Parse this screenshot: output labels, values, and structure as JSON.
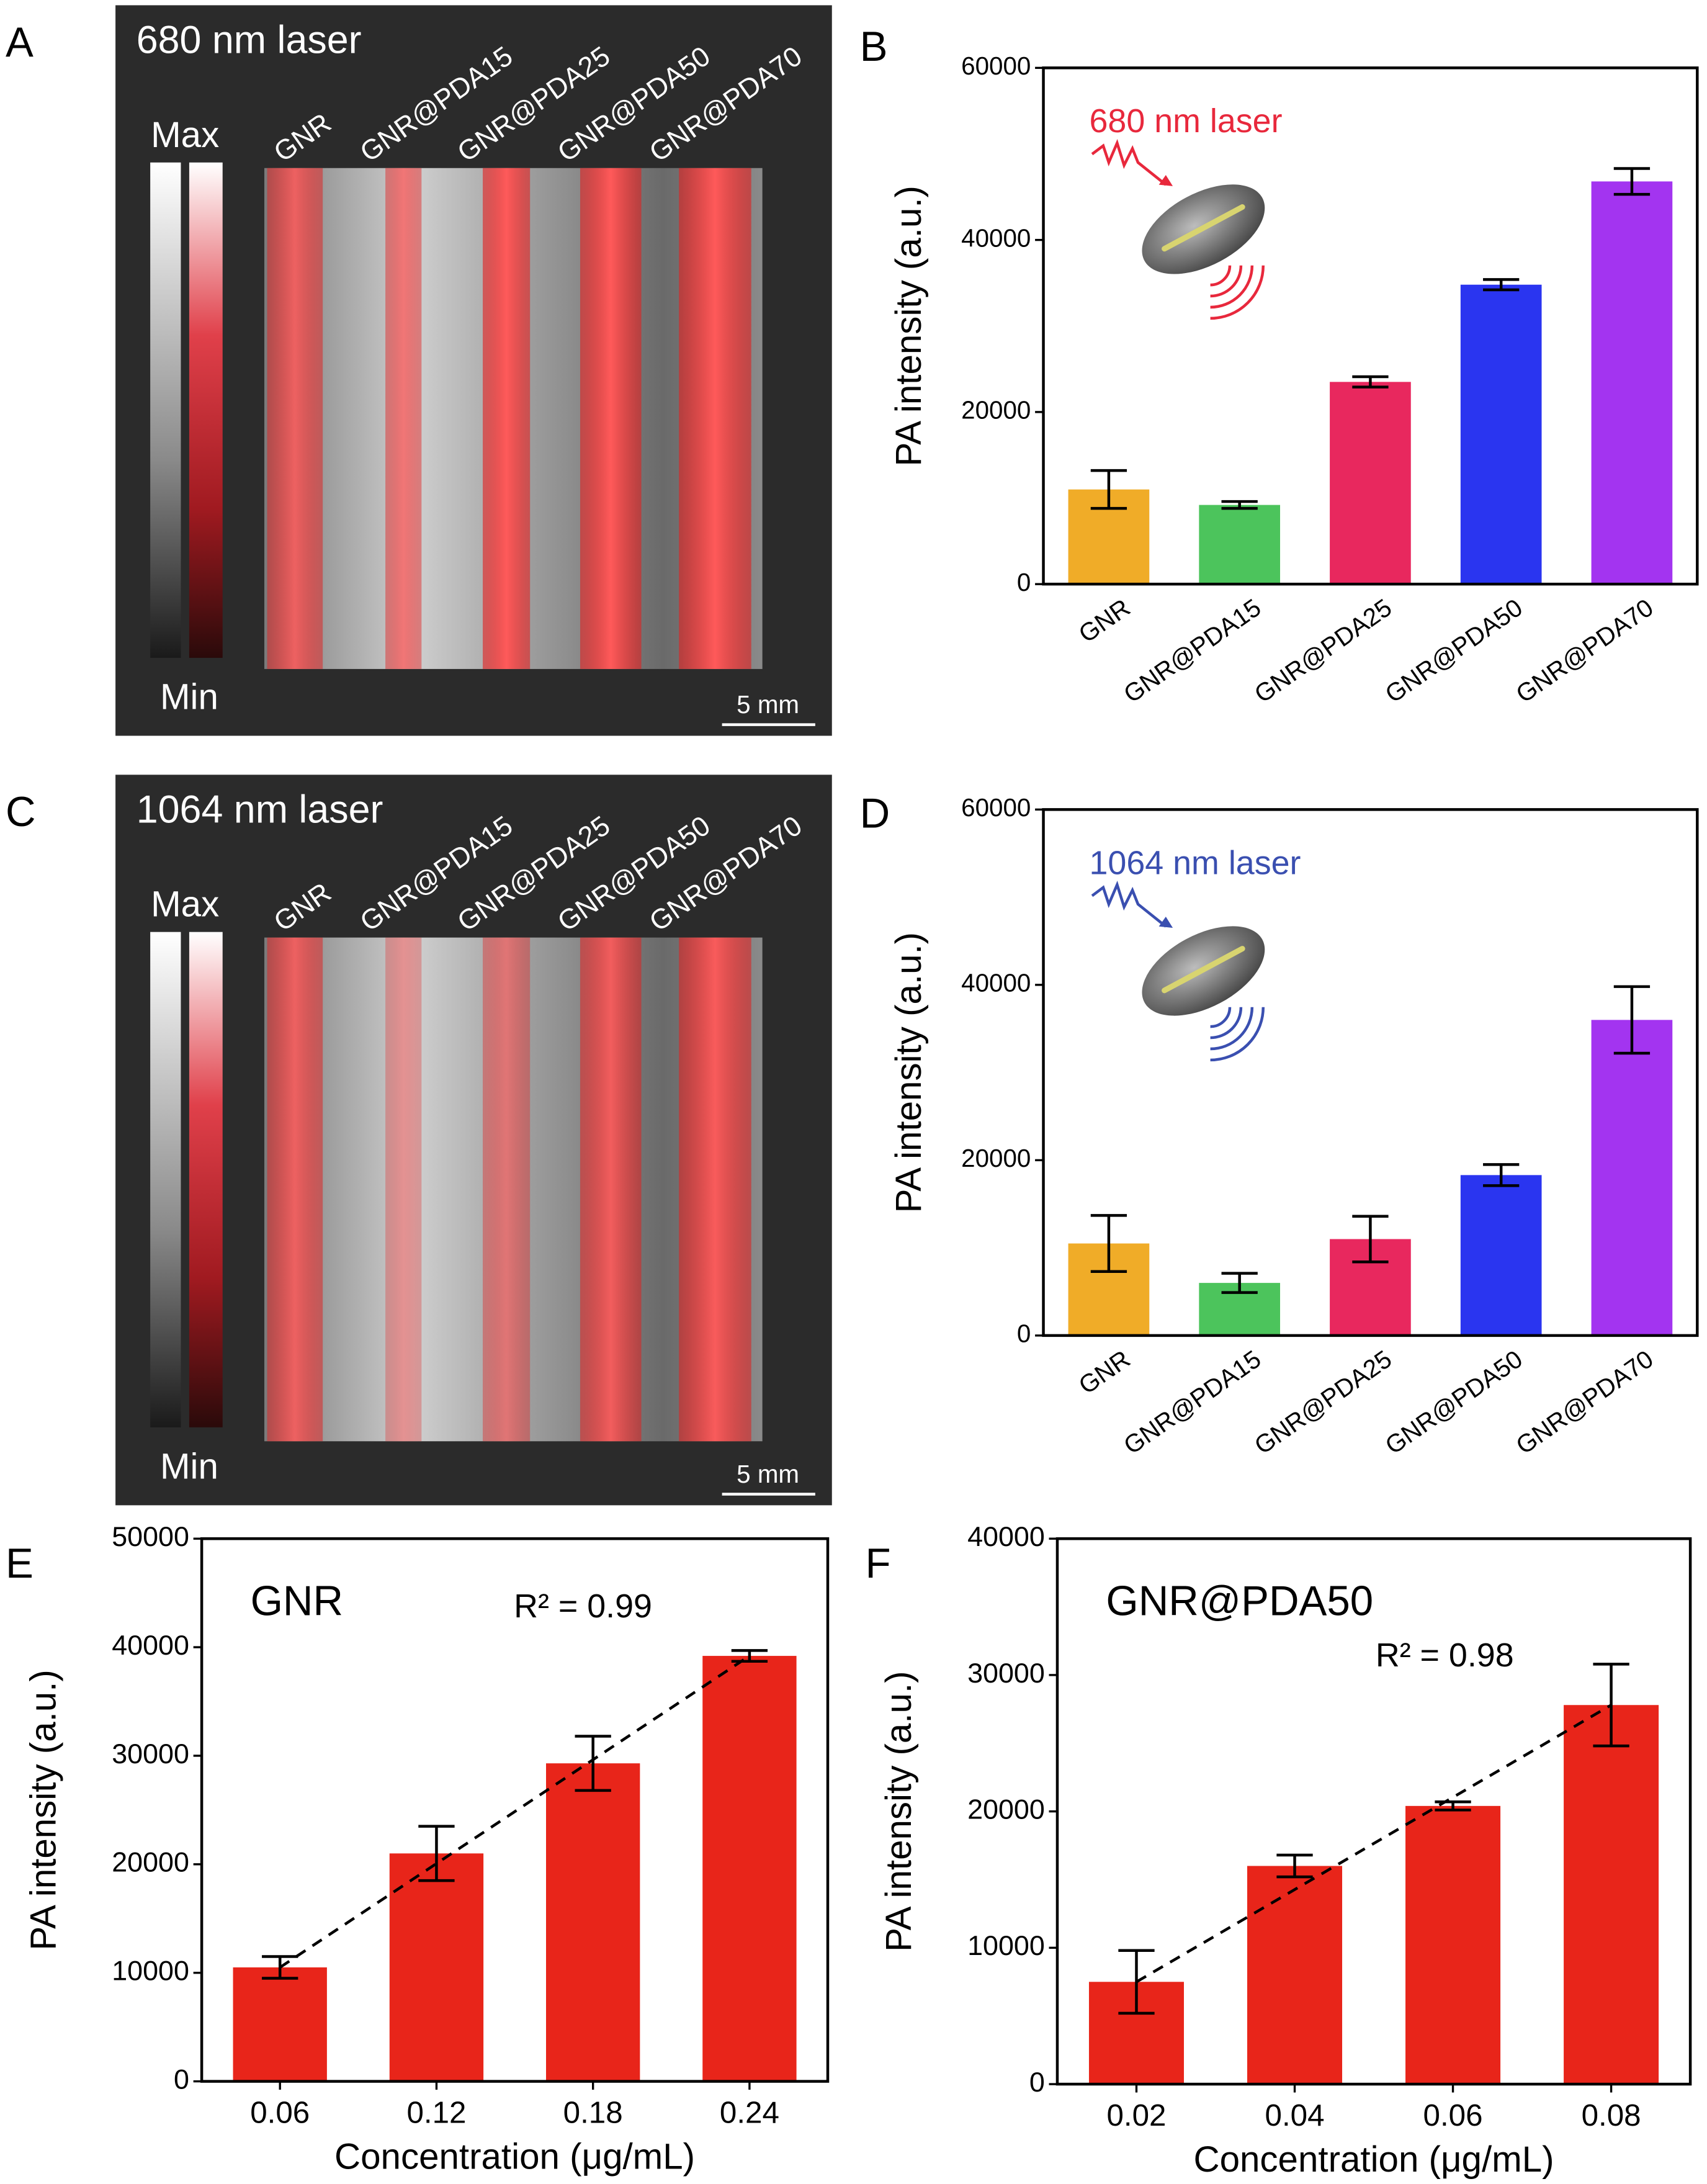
{
  "images": [
    {
      "panel_label": "A",
      "title": "680 nm laser",
      "max_label": "Max",
      "min_label": "Min",
      "scale_bar": "5 mm",
      "lanes": [
        "GNR",
        "GNR@PDA15",
        "GNR@PDA25",
        "GNR@PDA50",
        "GNR@PDA70"
      ]
    },
    {
      "panel_label": "C",
      "title": "1064 nm laser",
      "max_label": "Max",
      "min_label": "Min",
      "scale_bar": "5 mm",
      "lanes": [
        "GNR",
        "GNR@PDA15",
        "GNR@PDA25",
        "GNR@PDA50",
        "GNR@PDA70"
      ]
    }
  ],
  "chart_data": [
    {
      "type": "bar",
      "panel_label": "B",
      "annotation": "680 nm laser",
      "annotation_color": "#e8283c",
      "y_label": "PA intensity (a.u.)",
      "categories": [
        "GNR",
        "GNR@PDA15",
        "GNR@PDA25",
        "GNR@PDA50",
        "GNR@PDA70"
      ],
      "values": [
        11000,
        9200,
        23500,
        34800,
        46800
      ],
      "errors": [
        2200,
        400,
        600,
        600,
        1500
      ],
      "colors": [
        "#f0ac28",
        "#4cc45c",
        "#e8285e",
        "#2a35f0",
        "#a334f0"
      ],
      "ylim": [
        0,
        60000
      ],
      "yticks": [
        0,
        20000,
        40000,
        60000
      ]
    },
    {
      "type": "bar",
      "panel_label": "D",
      "annotation": "1064 nm laser",
      "annotation_color": "#3a4fb0",
      "y_label": "PA intensity (a.u.)",
      "categories": [
        "GNR",
        "GNR@PDA15",
        "GNR@PDA25",
        "GNR@PDA50",
        "GNR@PDA70"
      ],
      "values": [
        10500,
        6000,
        11000,
        18300,
        36000
      ],
      "errors": [
        3200,
        1100,
        2600,
        1200,
        3800
      ],
      "colors": [
        "#f0ac28",
        "#4cc45c",
        "#e8285e",
        "#2a35f0",
        "#a334f0"
      ],
      "ylim": [
        0,
        60000
      ],
      "yticks": [
        0,
        20000,
        40000,
        60000
      ]
    },
    {
      "type": "bar",
      "panel_label": "E",
      "title": "GNR",
      "annotation": "R² = 0.99",
      "fit_line": true,
      "y_label": "PA intensity (a.u.)",
      "x_label": "Concentration (μg/mL)",
      "categories": [
        "0.06",
        "0.12",
        "0.18",
        "0.24"
      ],
      "values": [
        10500,
        21000,
        29300,
        39200
      ],
      "errors": [
        1000,
        2500,
        2500,
        500
      ],
      "color": "#e8251a",
      "ylim": [
        0,
        50000
      ],
      "yticks": [
        0,
        10000,
        20000,
        30000,
        40000,
        50000
      ]
    },
    {
      "type": "bar",
      "panel_label": "F",
      "title": "GNR@PDA50",
      "annotation": "R² = 0.98",
      "fit_line": true,
      "y_label": "PA intensity (a.u.)",
      "x_label": "Concentration (μg/mL)",
      "categories": [
        "0.02",
        "0.04",
        "0.06",
        "0.08"
      ],
      "values": [
        7500,
        16000,
        20400,
        27800
      ],
      "errors": [
        2300,
        800,
        300,
        3000
      ],
      "color": "#e8251a",
      "ylim": [
        0,
        40000
      ],
      "yticks": [
        0,
        10000,
        20000,
        30000,
        40000
      ]
    }
  ]
}
